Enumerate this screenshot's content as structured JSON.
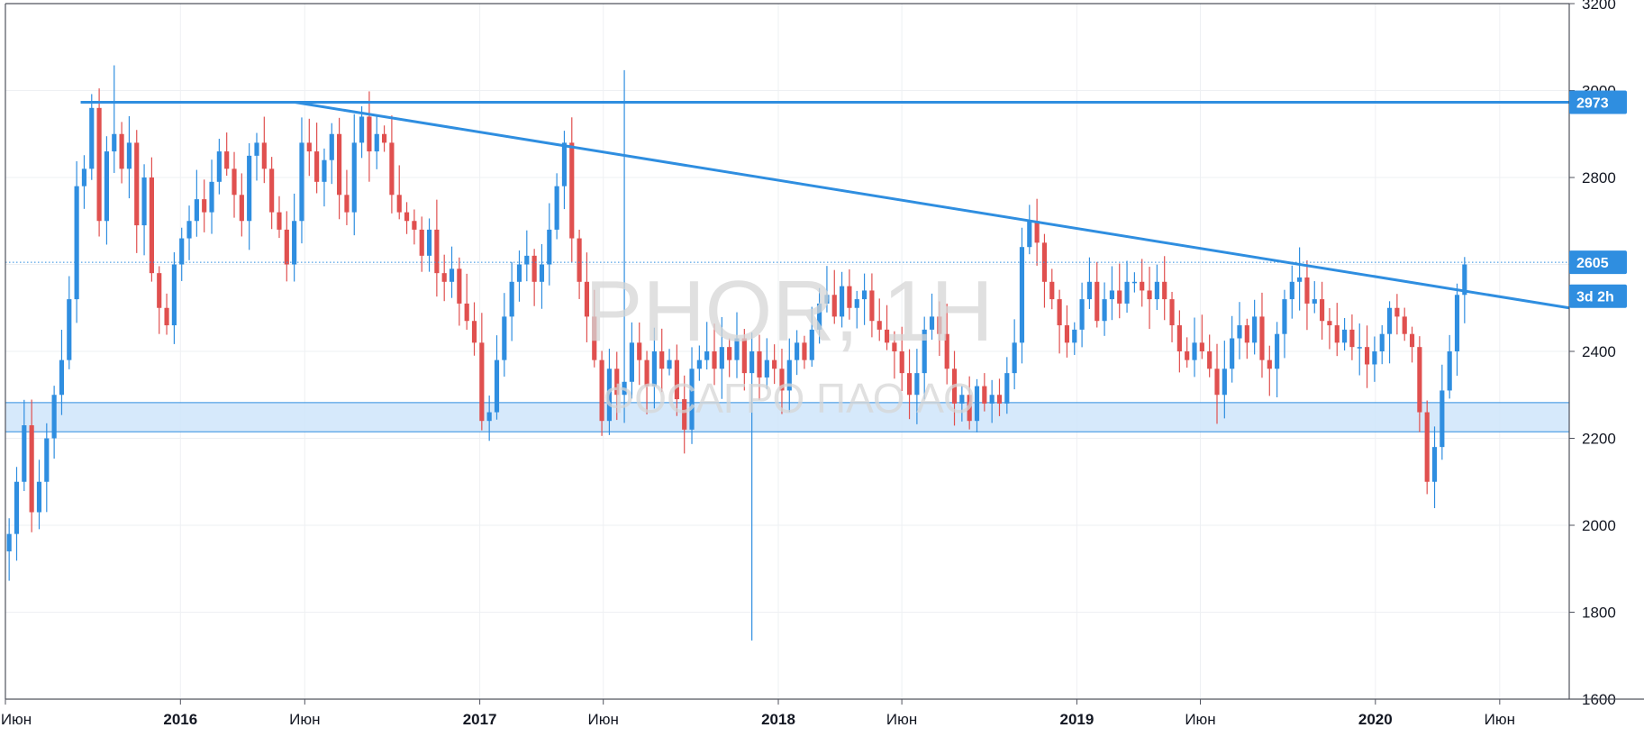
{
  "watermark": {
    "symbol": "PHOR, 1H",
    "name": "ФОСАГРО ПАО АО"
  },
  "chart_data": {
    "type": "candlestick",
    "title": "",
    "xlabel": "",
    "ylabel": "",
    "ylim": [
      1600,
      3200
    ],
    "xlim": [
      "2015-06-01",
      "2020-08-25"
    ],
    "y_ticks": [
      1600,
      1800,
      2000,
      2200,
      2400,
      2600,
      2800,
      3000,
      3200
    ],
    "x_ticks": [
      {
        "date": "2015-06-01",
        "label": "Июн",
        "bold": false
      },
      {
        "date": "2016-01-01",
        "label": "2016",
        "bold": true
      },
      {
        "date": "2016-06-01",
        "label": "Июн",
        "bold": false
      },
      {
        "date": "2017-01-01",
        "label": "2017",
        "bold": true
      },
      {
        "date": "2017-06-01",
        "label": "Июн",
        "bold": false
      },
      {
        "date": "2018-01-01",
        "label": "2018",
        "bold": true
      },
      {
        "date": "2018-06-01",
        "label": "Июн",
        "bold": false
      },
      {
        "date": "2019-01-01",
        "label": "2019",
        "bold": true
      },
      {
        "date": "2019-06-01",
        "label": "Июн",
        "bold": false
      },
      {
        "date": "2020-01-01",
        "label": "2020",
        "bold": true
      },
      {
        "date": "2020-06-01",
        "label": "Июн",
        "bold": false
      }
    ],
    "grid": true,
    "colors": {
      "up": "#2f8ee0",
      "down": "#e0504f",
      "line": "#2f8ee0",
      "zone": "#cfe5fa",
      "tag": "#2f8ee0"
    },
    "horizontal_line": {
      "value": 2973,
      "start": "2015-09-01"
    },
    "trendline": {
      "start": [
        "2016-05-20",
        2973
      ],
      "end": [
        "2020-08-25",
        2500
      ]
    },
    "dotted_line": {
      "value": 2605
    },
    "support_zone": {
      "low": 2215,
      "high": 2282
    },
    "price_tags": [
      {
        "value": 2973,
        "label": "2973"
      },
      {
        "value": 2605,
        "label": "2605"
      },
      {
        "value": 2527,
        "label": "3d 2h"
      }
    ],
    "closes": [
      1980,
      2100,
      2230,
      2030,
      2100,
      2200,
      2300,
      2380,
      2520,
      2780,
      2820,
      2960,
      2700,
      2860,
      2900,
      2820,
      2880,
      2690,
      2800,
      2580,
      2500,
      2460,
      2600,
      2660,
      2700,
      2750,
      2720,
      2790,
      2860,
      2820,
      2760,
      2700,
      2850,
      2880,
      2820,
      2720,
      2680,
      2600,
      2700,
      2880,
      2860,
      2790,
      2840,
      2900,
      2760,
      2720,
      2880,
      2940,
      2860,
      2900,
      2880,
      2760,
      2720,
      2700,
      2680,
      2620,
      2680,
      2580,
      2560,
      2590,
      2510,
      2470,
      2420,
      2240,
      2260,
      2380,
      2480,
      2560,
      2600,
      2620,
      2560,
      2600,
      2680,
      2780,
      2880,
      2660,
      2560,
      2480,
      2380,
      2240,
      2360,
      2300,
      2330,
      2420,
      2380,
      2320,
      2400,
      2360,
      2380,
      2290,
      2220,
      2360,
      2380,
      2400,
      2360,
      2410,
      2380,
      2430,
      2350,
      2400,
      2340,
      2380,
      2360,
      2310,
      2380,
      2420,
      2380,
      2450,
      2510,
      2530,
      2480,
      2550,
      2500,
      2520,
      2540,
      2470,
      2450,
      2420,
      2400,
      2350,
      2300,
      2350,
      2450,
      2480,
      2440,
      2360,
      2280,
      2300,
      2240,
      2320,
      2280,
      2300,
      2280,
      2350,
      2420,
      2640,
      2700,
      2650,
      2560,
      2520,
      2460,
      2420,
      2450,
      2520,
      2560,
      2470,
      2520,
      2540,
      2510,
      2560,
      2560,
      2540,
      2520,
      2560,
      2520,
      2460,
      2400,
      2380,
      2420,
      2400,
      2360,
      2300,
      2360,
      2430,
      2460,
      2420,
      2480,
      2380,
      2360,
      2440,
      2520,
      2560,
      2570,
      2510,
      2520,
      2470,
      2460,
      2420,
      2450,
      2410,
      2410,
      2370,
      2400,
      2440,
      2500,
      2480,
      2440,
      2410,
      2260,
      2100,
      2180,
      2310,
      2400,
      2530,
      2600
    ]
  }
}
